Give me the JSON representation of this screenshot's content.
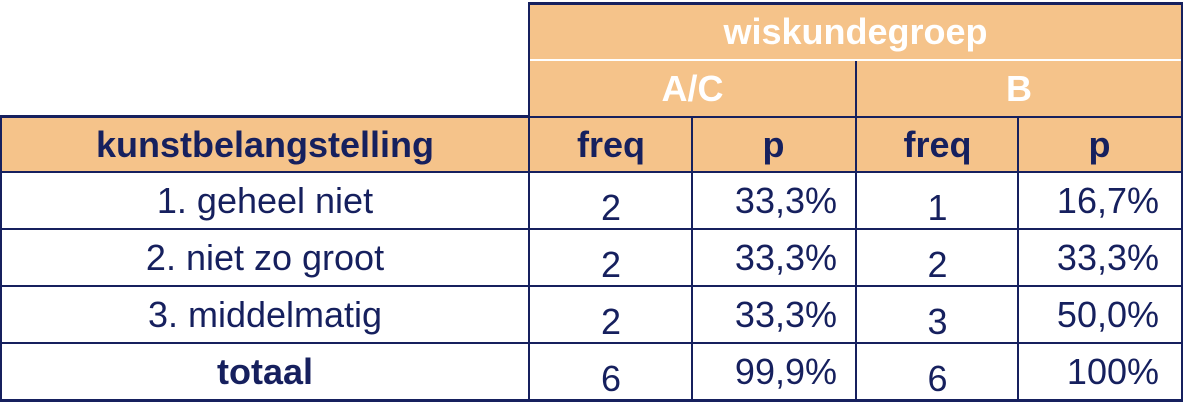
{
  "table": {
    "group_header": "wiskundegroep",
    "subgroups": [
      "A/C",
      "B"
    ],
    "row_header": "kunstbelangstelling",
    "columns": [
      "freq",
      "p",
      "freq",
      "p"
    ],
    "rows": [
      {
        "label": "1. geheel niet",
        "values": [
          "2",
          "33,3%",
          "1",
          "16,7%"
        ]
      },
      {
        "label": "2. niet zo groot",
        "values": [
          "2",
          "33,3%",
          "2",
          "33,3%"
        ]
      },
      {
        "label": "3. middelmatig",
        "values": [
          "2",
          "33,3%",
          "3",
          "50,0%"
        ]
      }
    ],
    "total": {
      "label": "totaal",
      "values": [
        "6",
        "99,9%",
        "6",
        "100%"
      ]
    }
  },
  "colors": {
    "header_fill": "#f5c38a",
    "border": "#16205e",
    "text": "#16205e",
    "header_text_light": "#ffffff"
  }
}
